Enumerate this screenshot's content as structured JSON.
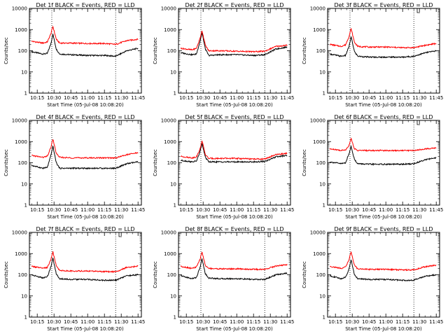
{
  "figure": {
    "x_ticks": [
      "10:15",
      "10:30",
      "10:45",
      "11:00",
      "11:15",
      "11:30",
      "11:45"
    ],
    "y_ticks": [
      "1",
      "10",
      "100",
      "1000",
      "10000"
    ],
    "xlabel": "Start Time (05-Jul-08 10:08:20)",
    "ylabel": "Counts/sec",
    "marker_label": "L",
    "colors": {
      "events": "#000000",
      "lld": "#ff0000"
    }
  },
  "chart_data": [
    {
      "type": "line",
      "title": "Det 1f BLACK = Events, RED = LLD",
      "xlabel": "Start Time (05-Jul-08 10:08:20)",
      "ylabel": "Counts/sec",
      "yscale": "log",
      "ylim": [
        1,
        10000
      ],
      "x": [
        "10:10",
        "10:20",
        "10:24",
        "10:27",
        "10:29",
        "10:32",
        "10:35",
        "10:45",
        "11:00",
        "11:15",
        "11:25",
        "11:35",
        "11:45"
      ],
      "series": [
        {
          "name": "Events",
          "color": "#000000",
          "values": [
            90,
            70,
            75,
            200,
            600,
            120,
            70,
            65,
            60,
            60,
            55,
            100,
            130
          ]
        },
        {
          "name": "LLD",
          "color": "#ff0000",
          "values": [
            280,
            230,
            260,
            600,
            1400,
            350,
            230,
            230,
            220,
            220,
            200,
            300,
            350
          ]
        }
      ],
      "vlines": [
        "10:28",
        "11:25"
      ],
      "marker_x": "11:28"
    },
    {
      "type": "line",
      "title": "Det 2f BLACK = Events, RED = LLD",
      "xlabel": "Start Time (05-Jul-08 10:08:20)",
      "ylabel": "Counts/sec",
      "yscale": "log",
      "ylim": [
        1,
        10000
      ],
      "x": [
        "10:10",
        "10:20",
        "10:24",
        "10:27",
        "10:29",
        "10:32",
        "10:35",
        "10:45",
        "11:00",
        "11:15",
        "11:25",
        "11:35",
        "11:45"
      ],
      "series": [
        {
          "name": "Events",
          "color": "#000000",
          "values": [
            80,
            65,
            70,
            250,
            700,
            120,
            60,
            65,
            65,
            60,
            65,
            120,
            150
          ]
        },
        {
          "name": "LLD",
          "color": "#ff0000",
          "values": [
            130,
            110,
            130,
            350,
            900,
            180,
            100,
            100,
            95,
            90,
            95,
            160,
            180
          ]
        }
      ],
      "vlines": [
        "10:28",
        "11:25"
      ],
      "marker_x": "11:28"
    },
    {
      "type": "line",
      "title": "Det 3f BLACK = Events, RED = LLD",
      "xlabel": "Start Time (05-Jul-08 10:08:20)",
      "ylabel": "Counts/sec",
      "yscale": "log",
      "ylim": [
        1,
        10000
      ],
      "x": [
        "10:10",
        "10:20",
        "10:24",
        "10:27",
        "10:29",
        "10:32",
        "10:35",
        "10:45",
        "11:00",
        "11:15",
        "11:25",
        "11:35",
        "11:45"
      ],
      "series": [
        {
          "name": "Events",
          "color": "#000000",
          "values": [
            70,
            55,
            60,
            150,
            450,
            90,
            55,
            50,
            50,
            50,
            55,
            80,
            100
          ]
        },
        {
          "name": "LLD",
          "color": "#ff0000",
          "values": [
            200,
            160,
            190,
            450,
            1100,
            250,
            160,
            150,
            150,
            140,
            140,
            180,
            220
          ]
        }
      ],
      "vlines": [
        "10:28",
        "11:25"
      ],
      "marker_x": "11:28"
    },
    {
      "type": "line",
      "title": "Det 4f BLACK = Events, RED = LLD",
      "xlabel": "Start Time (05-Jul-08 10:08:20)",
      "ylabel": "Counts/sec",
      "yscale": "log",
      "ylim": [
        1,
        10000
      ],
      "x": [
        "10:10",
        "10:20",
        "10:24",
        "10:27",
        "10:29",
        "10:32",
        "10:35",
        "10:45",
        "11:00",
        "11:15",
        "11:25",
        "11:35",
        "11:45"
      ],
      "series": [
        {
          "name": "Events",
          "color": "#000000",
          "values": [
            75,
            55,
            60,
            200,
            600,
            100,
            55,
            55,
            55,
            55,
            55,
            90,
            110
          ]
        },
        {
          "name": "LLD",
          "color": "#ff0000",
          "values": [
            220,
            180,
            200,
            500,
            1300,
            280,
            180,
            170,
            170,
            170,
            170,
            240,
            300
          ]
        }
      ],
      "vlines": [
        "10:28",
        "11:25"
      ],
      "marker_x": "11:28"
    },
    {
      "type": "line",
      "title": "Det 5f BLACK = Events, RED = LLD",
      "xlabel": "Start Time (05-Jul-08 10:08:20)",
      "ylabel": "Counts/sec",
      "yscale": "log",
      "ylim": [
        1,
        10000
      ],
      "x": [
        "10:10",
        "10:20",
        "10:24",
        "10:27",
        "10:29",
        "10:32",
        "10:35",
        "10:45",
        "11:00",
        "11:15",
        "11:25",
        "11:35",
        "11:45"
      ],
      "series": [
        {
          "name": "Events",
          "color": "#000000",
          "values": [
            130,
            110,
            120,
            300,
            800,
            180,
            110,
            110,
            110,
            110,
            115,
            190,
            220
          ]
        },
        {
          "name": "LLD",
          "color": "#ff0000",
          "values": [
            200,
            170,
            190,
            400,
            1100,
            240,
            160,
            160,
            160,
            150,
            150,
            240,
            280
          ]
        }
      ],
      "vlines": [
        "10:28",
        "11:25"
      ],
      "marker_x": "11:28"
    },
    {
      "type": "line",
      "title": "Det 6f BLACK = Events, RED = LLD",
      "xlabel": "Start Time (05-Jul-08 10:08:20)",
      "ylabel": "Counts/sec",
      "yscale": "log",
      "ylim": [
        1,
        10000
      ],
      "x": [
        "10:10",
        "10:20",
        "10:24",
        "10:27",
        "10:29",
        "10:32",
        "10:35",
        "10:45",
        "11:00",
        "11:15",
        "11:25",
        "11:35",
        "11:45"
      ],
      "series": [
        {
          "name": "Events",
          "color": "#000000",
          "values": [
            110,
            90,
            100,
            250,
            600,
            140,
            90,
            85,
            85,
            85,
            90,
            140,
            170
          ]
        },
        {
          "name": "LLD",
          "color": "#ff0000",
          "values": [
            450,
            380,
            400,
            650,
            1400,
            450,
            380,
            380,
            380,
            380,
            380,
            450,
            500
          ]
        }
      ],
      "vlines": [
        "10:28",
        "11:25"
      ],
      "marker_x": "11:28"
    },
    {
      "type": "line",
      "title": "Det 7f BLACK = Events, RED = LLD",
      "xlabel": "Start Time (05-Jul-08 10:08:20)",
      "ylabel": "Counts/sec",
      "yscale": "log",
      "ylim": [
        1,
        10000
      ],
      "x": [
        "10:10",
        "10:20",
        "10:24",
        "10:27",
        "10:29",
        "10:32",
        "10:35",
        "10:45",
        "11:00",
        "11:15",
        "11:25",
        "11:35",
        "11:45"
      ],
      "series": [
        {
          "name": "Events",
          "color": "#000000",
          "values": [
            100,
            70,
            80,
            220,
            600,
            110,
            65,
            60,
            60,
            55,
            55,
            90,
            100
          ]
        },
        {
          "name": "LLD",
          "color": "#ff0000",
          "values": [
            250,
            200,
            220,
            500,
            1200,
            260,
            160,
            150,
            150,
            140,
            140,
            220,
            260
          ]
        }
      ],
      "vlines": [
        "10:28",
        "11:25"
      ],
      "marker_x": "11:28"
    },
    {
      "type": "line",
      "title": "Det 8f BLACK = Events, RED = LLD",
      "xlabel": "Start Time (05-Jul-08 10:08:20)",
      "ylabel": "Counts/sec",
      "yscale": "log",
      "ylim": [
        1,
        10000
      ],
      "x": [
        "10:10",
        "10:20",
        "10:24",
        "10:27",
        "10:29",
        "10:32",
        "10:35",
        "10:45",
        "11:00",
        "11:15",
        "11:25",
        "11:35",
        "11:45"
      ],
      "series": [
        {
          "name": "Events",
          "color": "#000000",
          "values": [
            90,
            65,
            75,
            200,
            550,
            110,
            70,
            65,
            65,
            60,
            60,
            100,
            120
          ]
        },
        {
          "name": "LLD",
          "color": "#ff0000",
          "values": [
            250,
            200,
            230,
            500,
            1200,
            270,
            200,
            190,
            190,
            180,
            180,
            260,
            300
          ]
        }
      ],
      "vlines": [
        "10:28",
        "11:25"
      ],
      "marker_x": "11:28"
    },
    {
      "type": "line",
      "title": "Det 9f BLACK = Events, RED = LLD",
      "xlabel": "Start Time (05-Jul-08 10:08:20)",
      "ylabel": "Counts/sec",
      "yscale": "log",
      "ylim": [
        1,
        10000
      ],
      "x": [
        "10:10",
        "10:20",
        "10:24",
        "10:27",
        "10:29",
        "10:32",
        "10:35",
        "10:45",
        "11:00",
        "11:15",
        "11:25",
        "11:35",
        "11:45"
      ],
      "series": [
        {
          "name": "Events",
          "color": "#000000",
          "values": [
            90,
            65,
            75,
            180,
            500,
            100,
            65,
            60,
            60,
            55,
            55,
            85,
            100
          ]
        },
        {
          "name": "LLD",
          "color": "#ff0000",
          "values": [
            250,
            200,
            230,
            500,
            1200,
            270,
            190,
            180,
            180,
            170,
            170,
            240,
            280
          ]
        }
      ],
      "vlines": [
        "10:28",
        "11:25"
      ],
      "marker_x": "11:28"
    }
  ]
}
